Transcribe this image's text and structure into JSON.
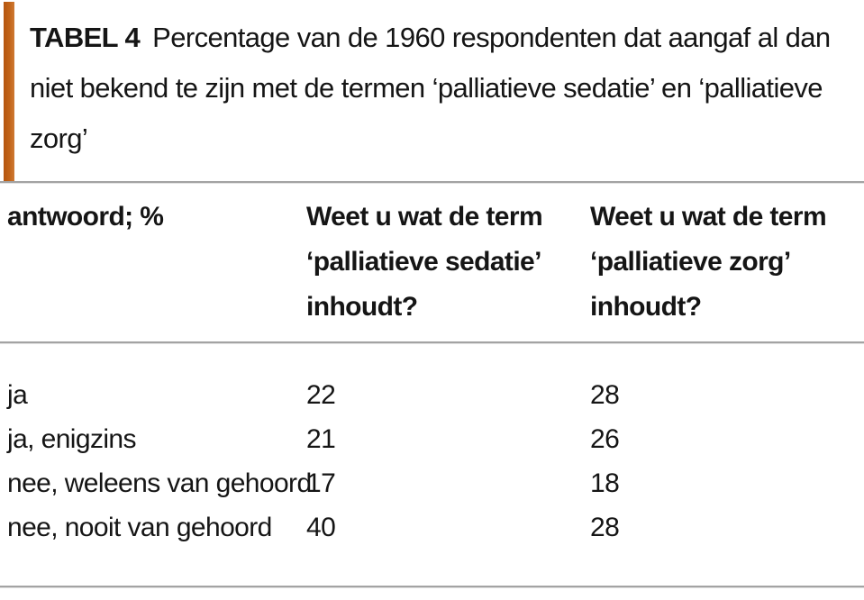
{
  "caption": {
    "label": "TABEL 4",
    "text": "Percentage van de 1960 respondenten dat aangaf al dan niet bekend te zijn met de termen ‘palliatieve sedatie’ en ‘palliatieve zorg’"
  },
  "table": {
    "columns": [
      "antwoord; %",
      "Weet u wat de term ‘palliatieve sedatie’ inhoudt?",
      "Weet u wat de term ‘palliatieve zorg’ inhoudt?"
    ],
    "rows": [
      {
        "answer": "ja",
        "sedatie": "22",
        "zorg": "28"
      },
      {
        "answer": "ja, enigzins",
        "sedatie": "21",
        "zorg": "26"
      },
      {
        "answer": "nee, weleens van gehoord",
        "sedatie": "17",
        "zorg": "18"
      },
      {
        "answer": "nee, nooit van gehoord",
        "sedatie": "40",
        "zorg": "28"
      }
    ]
  },
  "colors": {
    "accent_bar": "#c2641a",
    "rule": "#a3a3a3",
    "text": "#151515"
  }
}
